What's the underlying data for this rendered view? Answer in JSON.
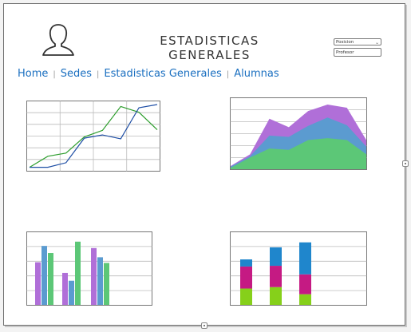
{
  "header": {
    "title": "ESTADISTICAS GENERALES",
    "avatar_icon": "user-silhouette-icon"
  },
  "controls": {
    "select_value": "Posicion",
    "input_value": "Profesor"
  },
  "nav": {
    "items": [
      {
        "label": "Home"
      },
      {
        "label": "Sedes"
      },
      {
        "label": "Estadisticas Generales"
      },
      {
        "label": "Alumnas"
      }
    ]
  },
  "colors": {
    "green": "#2e9e2e",
    "blue": "#1f4fa5",
    "purple": "#b06fd8",
    "steel": "#5b9bd0",
    "mint": "#5cc777",
    "magenta": "#c51a83",
    "lime": "#86d01a",
    "azure": "#1f86cc"
  },
  "chart_data": [
    {
      "type": "line",
      "x": [
        0,
        1,
        2,
        3,
        4,
        5,
        6,
        7
      ],
      "ylim": [
        0,
        100
      ],
      "series": [
        {
          "values": [
            3,
            20,
            25,
            50,
            60,
            97,
            88,
            61
          ]
        },
        {
          "values": [
            3,
            3,
            10,
            48,
            53,
            47,
            95,
            100
          ]
        }
      ]
    },
    {
      "type": "area",
      "x": [
        0,
        1,
        2,
        3,
        4,
        5,
        6,
        7
      ],
      "ylim": [
        0,
        100
      ],
      "series": [
        {
          "values": [
            2,
            18,
            32,
            30,
            45,
            48,
            45,
            23
          ]
        },
        {
          "values": [
            4,
            20,
            52,
            50,
            67,
            80,
            68,
            35
          ]
        },
        {
          "values": [
            5,
            23,
            78,
            65,
            90,
            100,
            95,
            45
          ]
        }
      ]
    },
    {
      "type": "bar",
      "categories": [
        "1",
        "2",
        "3"
      ],
      "ylim": [
        0,
        100
      ],
      "series": [
        {
          "values": [
            60,
            45,
            80
          ]
        },
        {
          "values": [
            83,
            34,
            67
          ]
        },
        {
          "values": [
            73,
            89,
            59
          ]
        }
      ]
    },
    {
      "type": "bar",
      "stacked": true,
      "categories": [
        "1",
        "2",
        "3"
      ],
      "ylim": [
        0,
        100
      ],
      "series": [
        {
          "values": [
            23,
            25,
            15
          ]
        },
        {
          "values": [
            31,
            30,
            28
          ]
        },
        {
          "values": [
            10,
            26,
            45
          ]
        }
      ]
    }
  ]
}
